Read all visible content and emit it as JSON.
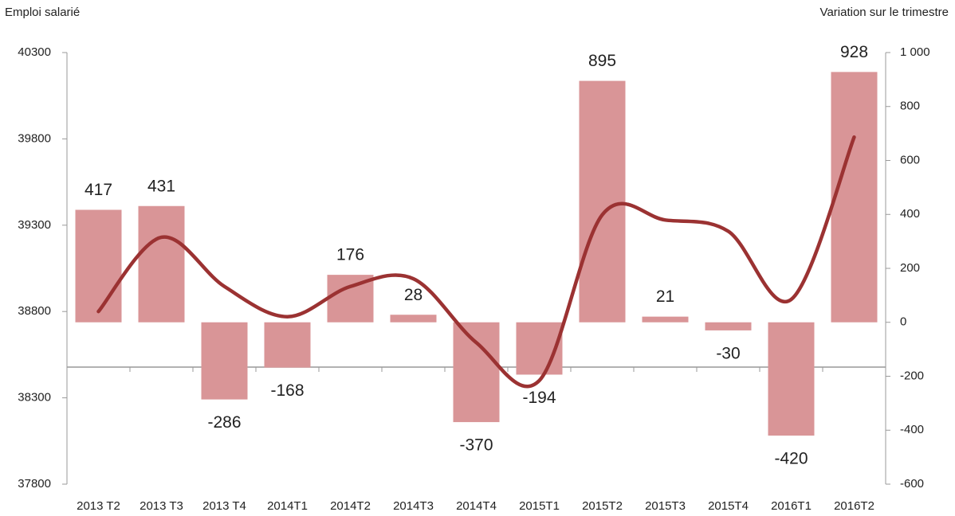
{
  "chart_data": {
    "type": "bar_line",
    "y_axis_title": "Emploi salarié",
    "y2_axis_title": "Variation sur le  trimestre",
    "categories": [
      "2013 T2",
      "2013 T3",
      "2013 T4",
      "2014T1",
      "2014T2",
      "2014T3",
      "2014T4",
      "2015T1",
      "2015T2",
      "2015T3",
      "2015T4",
      "2016T1",
      "2016T2"
    ],
    "series": [
      {
        "type": "bar",
        "axis": "y2",
        "color": "#d99597",
        "values": [
          417,
          431,
          -286,
          -168,
          176,
          28,
          -370,
          -194,
          895,
          21,
          -30,
          -420,
          928
        ]
      },
      {
        "type": "line",
        "axis": "y",
        "color": "#9b3232",
        "values": [
          38800,
          39230,
          38945,
          38770,
          38945,
          38990,
          38620,
          38400,
          39360,
          39330,
          39265,
          38870,
          39810
        ]
      }
    ],
    "ylim": [
      37800,
      40300
    ],
    "yticks": [
      37800,
      38300,
      38800,
      39300,
      39800,
      40300
    ],
    "y2lim": [
      -600,
      1000
    ],
    "y2ticks": [
      -600,
      -400,
      -200,
      0,
      200,
      400,
      600,
      800,
      {
        "value": 1000,
        "label": "1 000"
      }
    ]
  }
}
